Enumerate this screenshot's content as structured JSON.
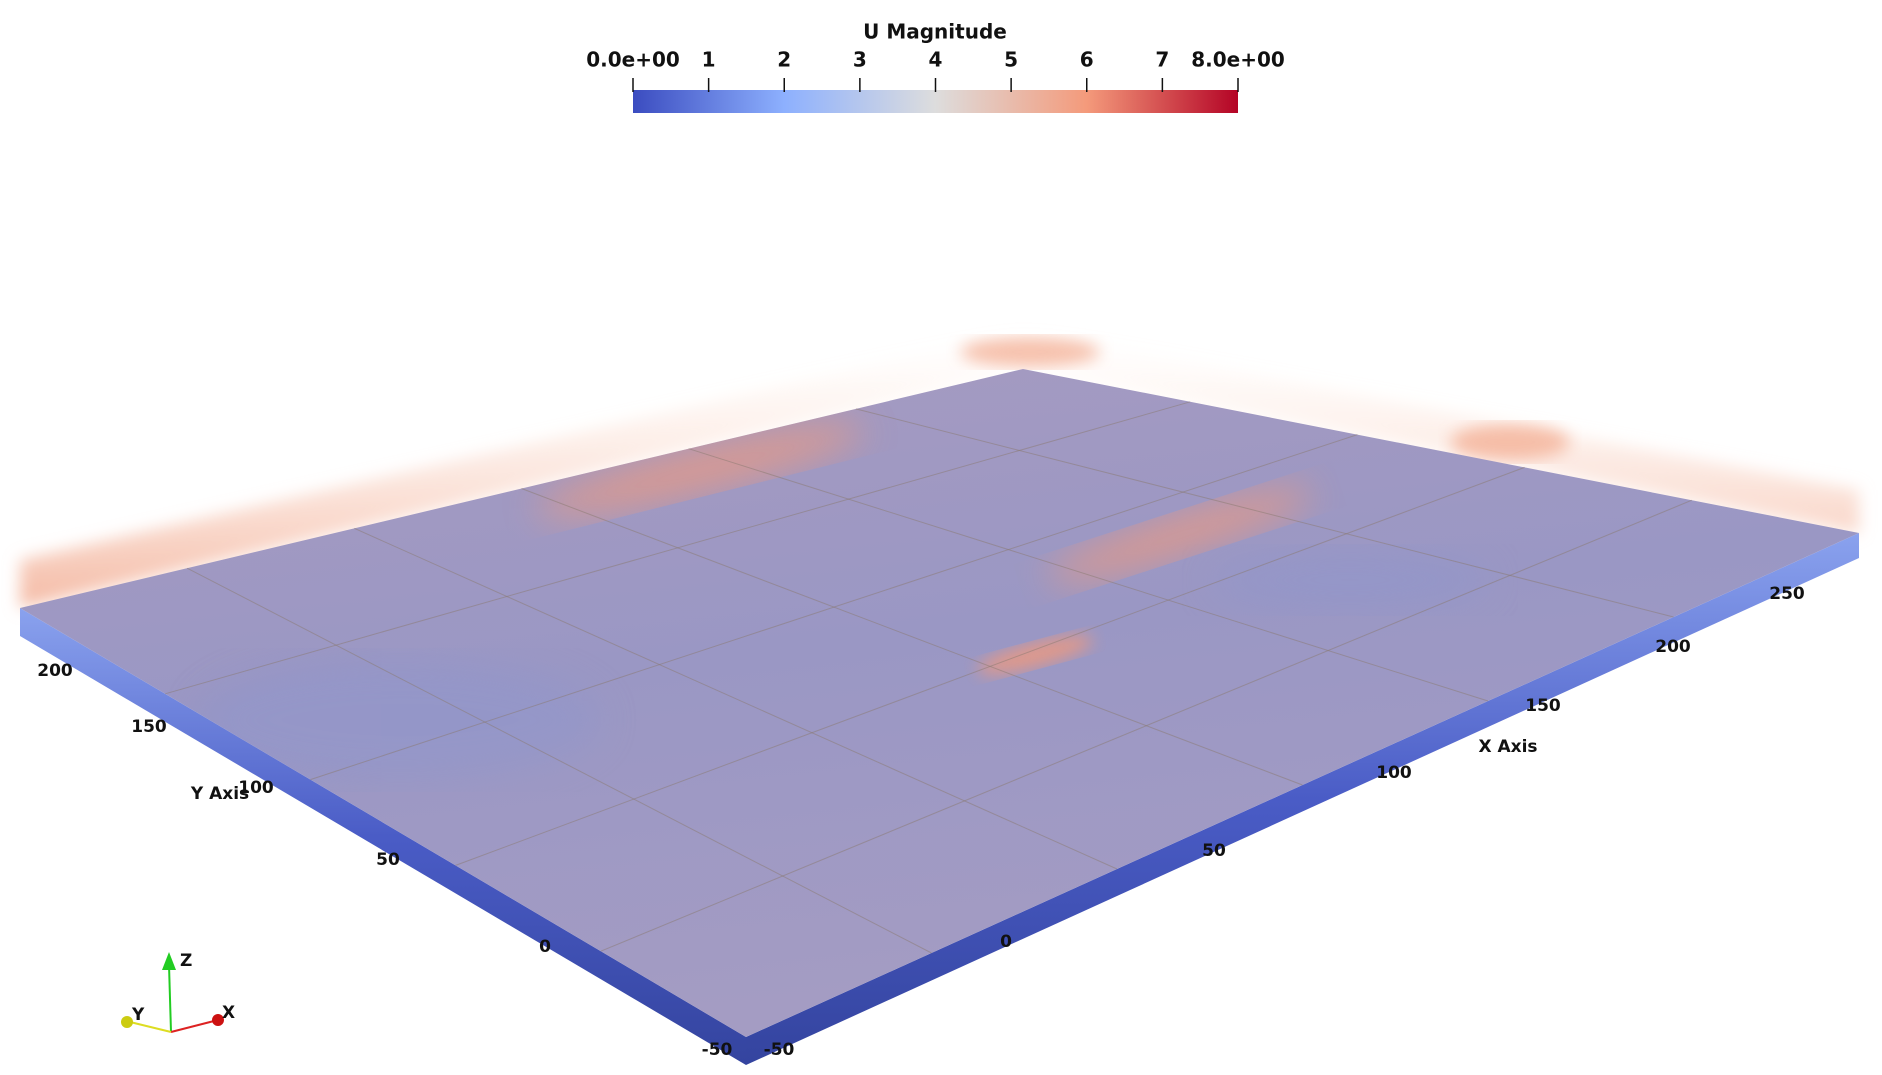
{
  "colorbar": {
    "title": "U Magnitude",
    "ticks": [
      "0.0e+00",
      "1",
      "2",
      "3",
      "4",
      "5",
      "6",
      "7",
      "8.0e+00"
    ]
  },
  "x_axis": {
    "label": "X Axis",
    "ticks": [
      "-50",
      "0",
      "50",
      "100",
      "150",
      "200",
      "250"
    ]
  },
  "y_axis": {
    "label": "Y Axis",
    "ticks": [
      "-50",
      "0",
      "50",
      "100",
      "150",
      "200"
    ]
  },
  "orientation_axes": {
    "x": "X",
    "y": "Y",
    "z": "Z"
  }
}
